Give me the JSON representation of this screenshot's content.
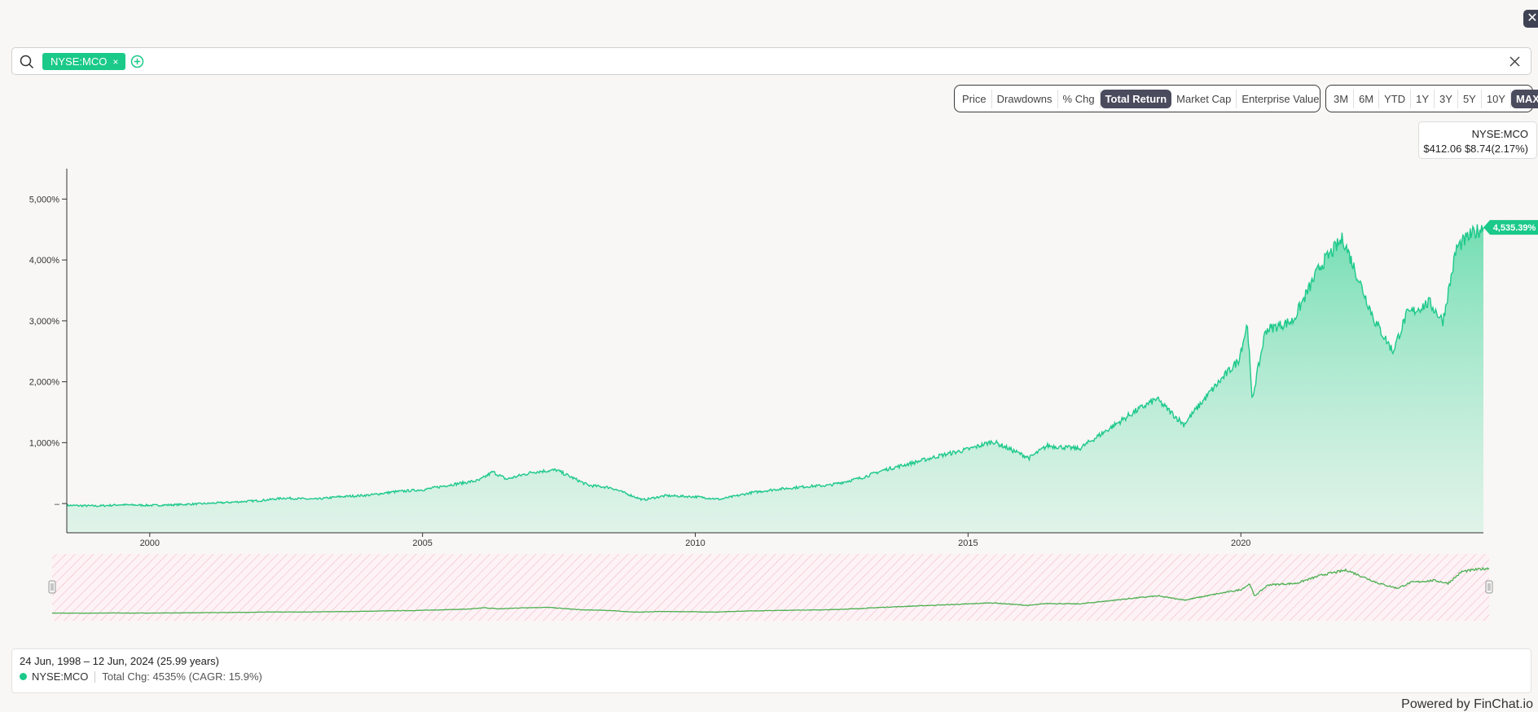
{
  "ui": {
    "close_label": "✕",
    "search": {
      "ticker_chip": "NYSE:MCO",
      "chip_remove": "×"
    },
    "metric_tabs": [
      "Price",
      "Drawdowns",
      "% Chg",
      "Total Return",
      "Market Cap",
      "Enterprise Value"
    ],
    "active_metric": "Total Return",
    "range_tabs": [
      "3M",
      "6M",
      "YTD",
      "1Y",
      "3Y",
      "5Y",
      "10Y",
      "MAX"
    ],
    "active_range": "MAX",
    "info": {
      "ticker": "NYSE:MCO",
      "price_line": "$412.06 $8.74(2.17%)"
    },
    "summary": {
      "range": "24 Jun, 1998 – 12 Jun, 2024 (25.99 years)",
      "ticker": "NYSE:MCO",
      "stat": "Total Chg: 4535% (CAGR: 15.9%)"
    },
    "powered_by": "Powered by FinChat.io"
  },
  "colors": {
    "accent": "#1bc989",
    "line": "#1ec98b",
    "navigator_line": "#4caf50",
    "hatch": "#f4b8c8",
    "active_tab": "#4a4b5d"
  },
  "chart_data": {
    "type": "area",
    "series": [
      {
        "name": "NYSE:MCO",
        "points": [
          [
            "1998-06-24",
            -30
          ],
          [
            "1999-01",
            -40
          ],
          [
            "1999-06",
            -20
          ],
          [
            "2000-01",
            -30
          ],
          [
            "2000-06",
            -20
          ],
          [
            "2001-01",
            0
          ],
          [
            "2001-06",
            20
          ],
          [
            "2002-01",
            50
          ],
          [
            "2002-06",
            90
          ],
          [
            "2003-01",
            70
          ],
          [
            "2003-06",
            110
          ],
          [
            "2004-01",
            140
          ],
          [
            "2004-06",
            190
          ],
          [
            "2005-01",
            230
          ],
          [
            "2005-06",
            300
          ],
          [
            "2006-01",
            380
          ],
          [
            "2006-04",
            520
          ],
          [
            "2006-07",
            400
          ],
          [
            "2007-01",
            520
          ],
          [
            "2007-06",
            550
          ],
          [
            "2008-01",
            300
          ],
          [
            "2008-06",
            260
          ],
          [
            "2009-01",
            60
          ],
          [
            "2009-06",
            130
          ],
          [
            "2010-01",
            110
          ],
          [
            "2010-06",
            70
          ],
          [
            "2011-01",
            180
          ],
          [
            "2011-06",
            230
          ],
          [
            "2012-01",
            280
          ],
          [
            "2012-06",
            300
          ],
          [
            "2013-01",
            420
          ],
          [
            "2013-06",
            550
          ],
          [
            "2014-01",
            680
          ],
          [
            "2014-06",
            780
          ],
          [
            "2015-01",
            900
          ],
          [
            "2015-06",
            1020
          ],
          [
            "2016-02",
            750
          ],
          [
            "2016-06",
            950
          ],
          [
            "2017-01",
            900
          ],
          [
            "2017-06",
            1150
          ],
          [
            "2018-01",
            1500
          ],
          [
            "2018-06",
            1720
          ],
          [
            "2018-12",
            1300
          ],
          [
            "2019-06",
            1850
          ],
          [
            "2019-12",
            2350
          ],
          [
            "2020-02",
            2950
          ],
          [
            "2020-03",
            1700
          ],
          [
            "2020-06",
            2850
          ],
          [
            "2020-12",
            3000
          ],
          [
            "2021-06",
            3900
          ],
          [
            "2021-11",
            4350
          ],
          [
            "2022-06",
            3000
          ],
          [
            "2022-10",
            2500
          ],
          [
            "2023-01",
            3100
          ],
          [
            "2023-06",
            3300
          ],
          [
            "2023-09",
            3000
          ],
          [
            "2023-12",
            4200
          ],
          [
            "2024-03",
            4400
          ],
          [
            "2024-06-12",
            4535.39
          ]
        ]
      }
    ],
    "y_ticks": [
      0,
      1000,
      2000,
      3000,
      4000,
      5000
    ],
    "y_tick_labels": [
      "–",
      "1,000%",
      "2,000%",
      "3,000%",
      "4,000%",
      "5,000%"
    ],
    "x_tick_labels": [
      "2000",
      "2005",
      "2010",
      "2015",
      "2020"
    ],
    "ylim": [
      -480,
      5500
    ],
    "xlim": [
      "1998-06-24",
      "2024-06-12"
    ],
    "last_value_label": "4,535.39%",
    "grid": false,
    "navigator": true
  }
}
